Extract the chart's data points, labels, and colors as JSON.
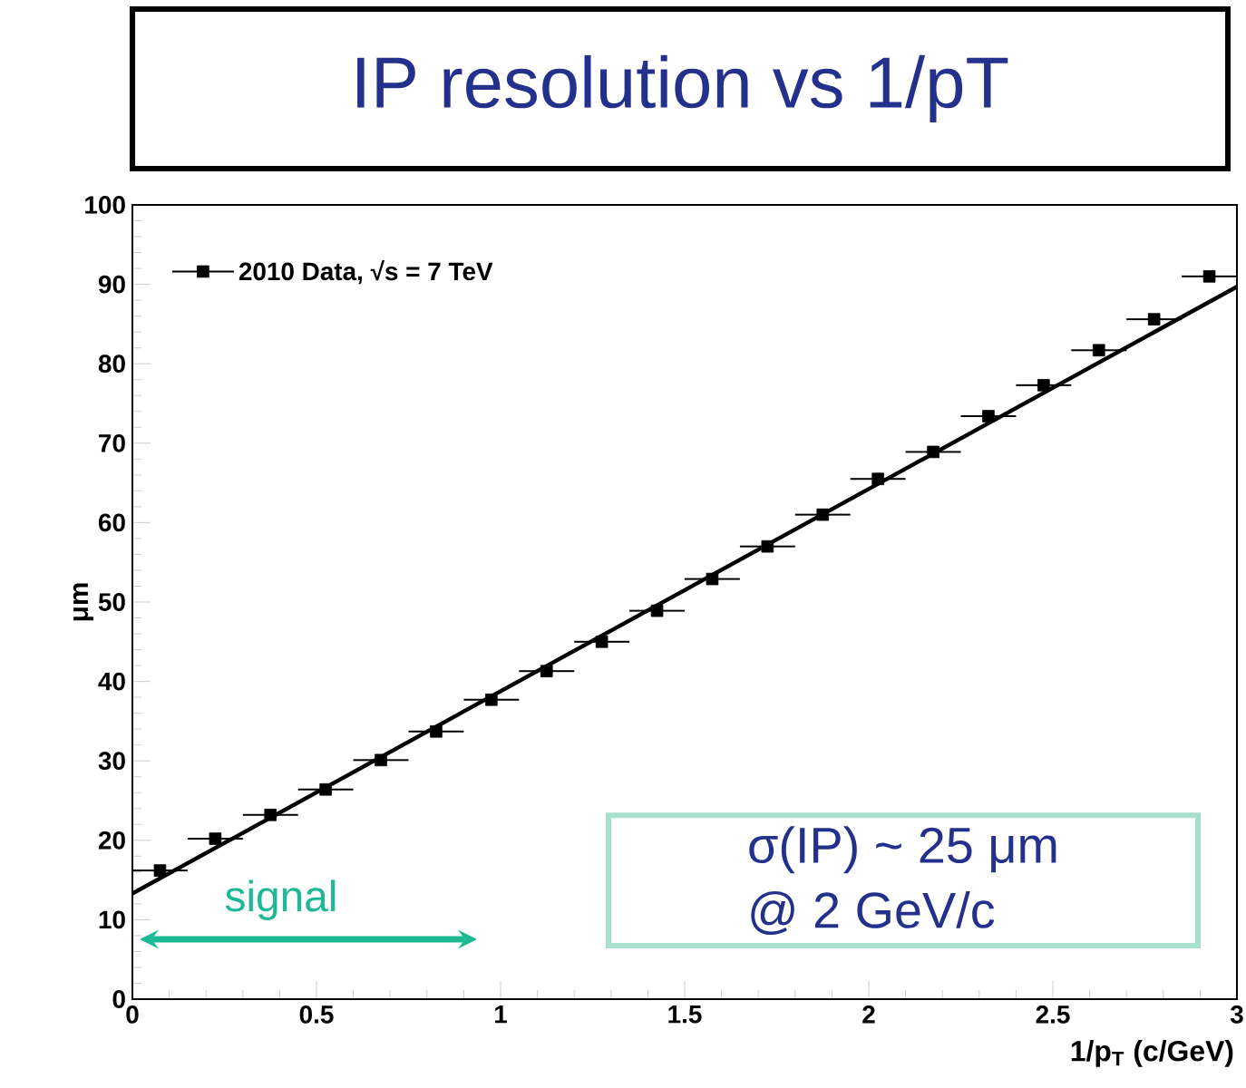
{
  "chart_data": {
    "type": "scatter",
    "title": "IP resolution vs 1/pT",
    "xlabel": "1/p$_{T}$ (c/GeV)",
    "ylabel": "μm",
    "xlim": [
      0,
      3
    ],
    "ylim": [
      0,
      100
    ],
    "xticks": [
      0,
      0.5,
      1,
      1.5,
      2,
      2.5,
      3
    ],
    "yticks": [
      0,
      10,
      20,
      30,
      40,
      50,
      60,
      70,
      80,
      90,
      100
    ],
    "legend": "top left",
    "series": [
      {
        "name": "2010 Data, √s = 7 TeV",
        "color": "#000000",
        "marker": "square",
        "x": [
          0.075,
          0.225,
          0.375,
          0.525,
          0.675,
          0.825,
          0.975,
          1.125,
          1.275,
          1.425,
          1.575,
          1.725,
          1.875,
          2.025,
          2.175,
          2.325,
          2.475,
          2.625,
          2.775,
          2.925
        ],
        "values": [
          16.2,
          20.2,
          23.2,
          26.4,
          30.1,
          33.7,
          37.7,
          41.3,
          45.0,
          48.9,
          52.9,
          57.0,
          61.0,
          65.5,
          68.9,
          73.4,
          77.3,
          81.7,
          85.6,
          91.0
        ],
        "xerrors": [
          0.075,
          0.075,
          0.075,
          0.075,
          0.075,
          0.075,
          0.075,
          0.075,
          0.075,
          0.075,
          0.075,
          0.075,
          0.075,
          0.075,
          0.075,
          0.075,
          0.075,
          0.075,
          0.075,
          0.075
        ]
      },
      {
        "type": "line",
        "color": "#000000",
        "x": [
          0,
          3
        ],
        "values": [
          13.3,
          89.7
        ]
      }
    ],
    "annotations": [
      "signal",
      "σ(IP) ~ 25 μm",
      "@ 2 GeV/c"
    ]
  }
}
